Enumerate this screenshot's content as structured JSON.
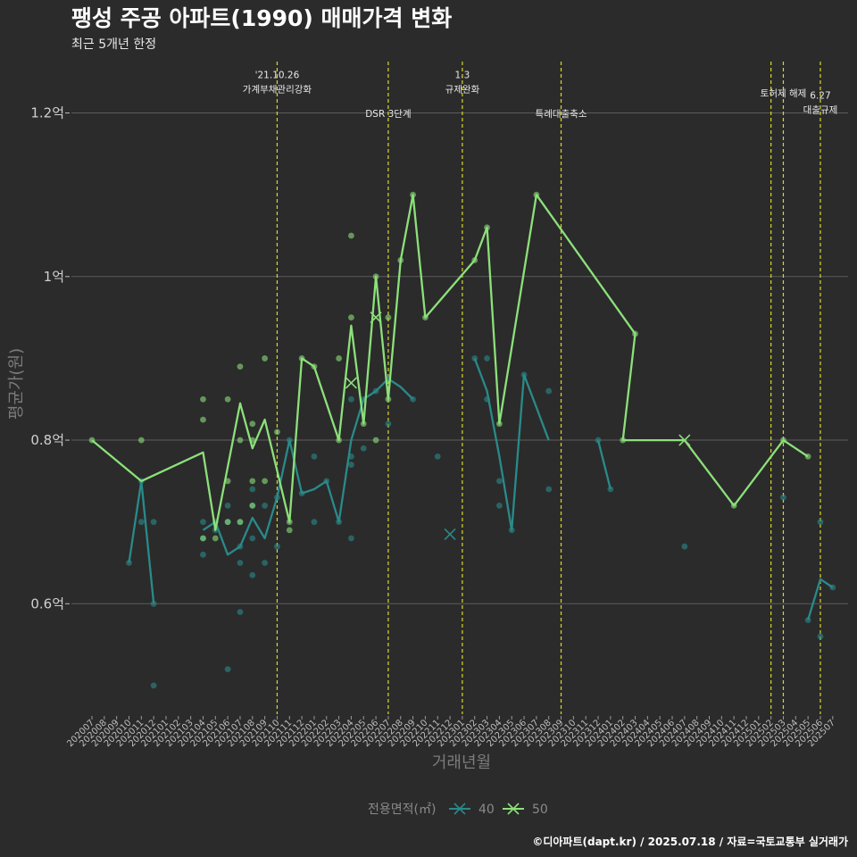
{
  "title": "팽성 주공 아파트(1990) 매매가격 변화",
  "subtitle": "최근 5개년 한정",
  "caption": "©디아파트(dapt.kr) / 2025.07.18 / 자료=국토교통부 실거래가",
  "chart_data": {
    "type": "line",
    "xlabel": "거래년월",
    "ylabel": "평균가(원)",
    "months": [
      "202007",
      "202008",
      "202009",
      "202010",
      "202011",
      "202012",
      "202101",
      "202102",
      "202103",
      "202104",
      "202105",
      "202106",
      "202107",
      "202108",
      "202109",
      "202110",
      "202111",
      "202112",
      "202201",
      "202202",
      "202203",
      "202204",
      "202205",
      "202206",
      "202207",
      "202208",
      "202209",
      "202210",
      "202211",
      "202212",
      "202301",
      "202302",
      "202303",
      "202304",
      "202305",
      "202306",
      "202307",
      "202308",
      "202309",
      "202310",
      "202311",
      "202312",
      "202401",
      "202402",
      "202403",
      "202404",
      "202405",
      "202406",
      "202407",
      "202408",
      "202409",
      "202410",
      "202411",
      "202412",
      "202501",
      "202502",
      "202503",
      "202504",
      "202505",
      "202506",
      "202507"
    ],
    "y_ticks": [
      {
        "value": 0.6,
        "label": "0.6억"
      },
      {
        "value": 0.8,
        "label": "0.8억"
      },
      {
        "value": 1.0,
        "label": "1억"
      },
      {
        "value": 1.2,
        "label": "1.2억"
      }
    ],
    "ylim": [
      0.465,
      1.265
    ],
    "grid": true,
    "legend": {
      "title": "전용면적(㎡)",
      "position": "bottom"
    },
    "series": [
      {
        "name": "40",
        "color": "#2a8a8a",
        "line": [
          [
            "202010",
            0.65
          ],
          [
            "202011",
            0.75
          ],
          [
            "202012",
            0.6
          ],
          null,
          [
            "202104",
            0.69
          ],
          [
            "202105",
            0.7
          ],
          [
            "202106",
            0.66
          ],
          [
            "202107",
            0.67
          ],
          [
            "202108",
            0.705
          ],
          [
            "202109",
            0.68
          ],
          [
            "202110",
            0.73
          ],
          [
            "202111",
            0.8
          ],
          [
            "202112",
            0.735
          ],
          [
            "202201",
            0.74
          ],
          [
            "202202",
            0.75
          ],
          [
            "202203",
            0.7
          ],
          [
            "202204",
            0.8
          ],
          [
            "202205",
            0.85
          ],
          [
            "202206",
            0.86
          ],
          [
            "202207",
            0.875
          ],
          [
            "202208",
            0.865
          ],
          [
            "202209",
            0.85
          ],
          null,
          [
            "202211",
            0.78
          ],
          null,
          [
            "202302",
            0.9
          ],
          [
            "202303",
            0.86
          ],
          [
            "202304",
            0.78
          ],
          [
            "202305",
            0.69
          ],
          [
            "202306",
            0.88
          ],
          [
            "202307",
            0.84
          ],
          [
            "202308",
            0.8
          ],
          null,
          [
            "202312",
            0.8
          ],
          [
            "202401",
            0.74
          ],
          null,
          [
            "202505",
            0.58
          ],
          [
            "202506",
            0.63
          ],
          [
            "202507",
            0.62
          ]
        ],
        "points": [
          [
            "202010",
            0.65
          ],
          [
            "202011",
            0.75
          ],
          [
            "202011",
            0.7
          ],
          [
            "202012",
            0.6
          ],
          [
            "202012",
            0.7
          ],
          [
            "202012",
            0.5
          ],
          [
            "202104",
            0.7
          ],
          [
            "202104",
            0.68
          ],
          [
            "202104",
            0.66
          ],
          [
            "202105",
            0.7
          ],
          [
            "202105",
            0.69
          ],
          [
            "202106",
            0.7
          ],
          [
            "202106",
            0.52
          ],
          [
            "202106",
            0.72
          ],
          [
            "202107",
            0.7
          ],
          [
            "202107",
            0.67
          ],
          [
            "202107",
            0.65
          ],
          [
            "202107",
            0.59
          ],
          [
            "202108",
            0.72
          ],
          [
            "202108",
            0.68
          ],
          [
            "202108",
            0.635
          ],
          [
            "202108",
            0.74
          ],
          [
            "202109",
            0.65
          ],
          [
            "202109",
            0.72
          ],
          [
            "202110",
            0.73
          ],
          [
            "202110",
            0.67
          ],
          [
            "202111",
            0.8
          ],
          [
            "202112",
            0.735
          ],
          [
            "202201",
            0.78
          ],
          [
            "202201",
            0.7
          ],
          [
            "202202",
            0.75
          ],
          [
            "202203",
            0.7
          ],
          [
            "202204",
            0.78
          ],
          [
            "202204",
            0.77
          ],
          [
            "202204",
            0.68
          ],
          [
            "202204",
            0.85
          ],
          [
            "202205",
            0.79
          ],
          [
            "202205",
            0.85
          ],
          [
            "202206",
            0.86
          ],
          [
            "202207",
            0.875
          ],
          [
            "202207",
            0.82
          ],
          [
            "202209",
            0.85
          ],
          [
            "202211",
            0.78
          ],
          [
            "202302",
            0.9
          ],
          [
            "202303",
            0.9
          ],
          [
            "202303",
            0.85
          ],
          [
            "202304",
            0.75
          ],
          [
            "202304",
            0.72
          ],
          [
            "202305",
            0.69
          ],
          [
            "202306",
            0.88
          ],
          [
            "202308",
            0.86
          ],
          [
            "202308",
            0.74
          ],
          [
            "202312",
            0.8
          ],
          [
            "202401",
            0.74
          ],
          [
            "202407",
            0.67
          ],
          [
            "202503",
            0.73
          ],
          [
            "202505",
            0.58
          ],
          [
            "202506",
            0.7
          ],
          [
            "202506",
            0.56
          ],
          [
            "202507",
            0.62
          ]
        ],
        "x_marks": [
          [
            "202212",
            0.685
          ]
        ]
      },
      {
        "name": "50",
        "color": "#8ce07a",
        "line": [
          [
            "202007",
            0.8
          ],
          [
            "202011",
            0.75
          ],
          [
            "202104",
            0.785
          ],
          [
            "202105",
            0.69
          ],
          [
            "202107",
            0.845
          ],
          [
            "202108",
            0.79
          ],
          [
            "202109",
            0.825
          ],
          [
            "202111",
            0.7
          ],
          [
            "202112",
            0.9
          ],
          [
            "202201",
            0.89
          ],
          [
            "202203",
            0.8
          ],
          [
            "202204",
            0.94
          ],
          [
            "202205",
            0.82
          ],
          [
            "202206",
            1.0
          ],
          [
            "202207",
            0.85
          ],
          [
            "202208",
            1.02
          ],
          [
            "202209",
            1.1
          ],
          [
            "202210",
            0.95
          ],
          [
            "202302",
            1.02
          ],
          [
            "202303",
            1.06
          ],
          [
            "202304",
            0.82
          ],
          [
            "202307",
            1.1
          ],
          [
            "202403",
            0.93
          ],
          [
            "202402",
            0.8
          ],
          [
            "202407",
            0.8
          ],
          [
            "202411",
            0.72
          ],
          [
            "202503",
            0.8
          ],
          [
            "202505",
            0.78
          ]
        ],
        "points": [
          [
            "202007",
            0.8
          ],
          [
            "202011",
            0.8
          ],
          [
            "202104",
            0.85
          ],
          [
            "202104",
            0.825
          ],
          [
            "202104",
            0.68
          ],
          [
            "202105",
            0.68
          ],
          [
            "202106",
            0.85
          ],
          [
            "202106",
            0.75
          ],
          [
            "202106",
            0.7
          ],
          [
            "202107",
            0.89
          ],
          [
            "202107",
            0.8
          ],
          [
            "202107",
            0.7
          ],
          [
            "202108",
            0.82
          ],
          [
            "202108",
            0.8
          ],
          [
            "202108",
            0.75
          ],
          [
            "202108",
            0.72
          ],
          [
            "202109",
            0.9
          ],
          [
            "202109",
            0.75
          ],
          [
            "202110",
            0.81
          ],
          [
            "202111",
            0.7
          ],
          [
            "202111",
            0.69
          ],
          [
            "202112",
            0.9
          ],
          [
            "202201",
            0.89
          ],
          [
            "202203",
            0.9
          ],
          [
            "202203",
            0.8
          ],
          [
            "202204",
            1.05
          ],
          [
            "202204",
            0.95
          ],
          [
            "202205",
            0.82
          ],
          [
            "202206",
            1.0
          ],
          [
            "202206",
            0.8
          ],
          [
            "202207",
            0.95
          ],
          [
            "202207",
            0.85
          ],
          [
            "202208",
            1.02
          ],
          [
            "202209",
            1.1
          ],
          [
            "202210",
            0.95
          ],
          [
            "202302",
            1.02
          ],
          [
            "202303",
            1.06
          ],
          [
            "202304",
            0.82
          ],
          [
            "202307",
            1.1
          ],
          [
            "202402",
            0.8
          ],
          [
            "202403",
            0.93
          ],
          [
            "202411",
            0.72
          ],
          [
            "202503",
            0.8
          ],
          [
            "202505",
            0.78
          ]
        ],
        "x_marks": [
          [
            "202204",
            0.87
          ],
          [
            "202206",
            0.95
          ],
          [
            "202407",
            0.8
          ]
        ]
      }
    ],
    "events": [
      {
        "month": "202110",
        "lines": [
          "'21.10.26",
          "가계부채관리강화"
        ],
        "label_y": 1.225
      },
      {
        "month": "202207",
        "lines": [
          "DSR 3단계"
        ],
        "label_y": 1.195
      },
      {
        "month": "202301",
        "lines": [
          "1.3",
          "규제완화"
        ],
        "label_y": 1.225
      },
      {
        "month": "202309",
        "lines": [
          "특례대출축소"
        ],
        "label_y": 1.195
      },
      {
        "month": "202502",
        "lines": [],
        "label_y": 1.22
      },
      {
        "month": "202503",
        "lines": [
          "토허제 해제"
        ],
        "label_y": 1.22
      },
      {
        "month": "202506",
        "lines": [
          "6.27",
          "대출규제"
        ],
        "label_y": 1.2
      }
    ],
    "event_color": "#d8d82a"
  }
}
